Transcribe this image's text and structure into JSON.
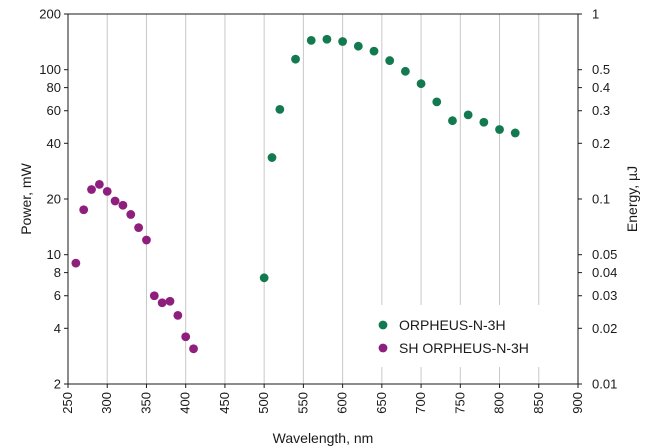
{
  "chart_data": {
    "type": "scatter",
    "xlabel": "Wavelength, nm",
    "ylabel": "Power, mW",
    "y2label": "Energy, µJ",
    "xlim": [
      250,
      900
    ],
    "ylim": [
      2,
      200
    ],
    "y2lim": [
      0.01,
      1
    ],
    "y_scale": "log",
    "y2_scale": "log",
    "grid": "vertical",
    "legend_position": "bottom-right",
    "x_ticks": [
      "250",
      "300",
      "350",
      "400",
      "450",
      "500",
      "550",
      "600",
      "650",
      "700",
      "750",
      "800",
      "850",
      "900"
    ],
    "x_tick_values": [
      250,
      300,
      350,
      400,
      450,
      500,
      550,
      600,
      650,
      700,
      750,
      800,
      850,
      900
    ],
    "y_ticks": [
      "2",
      "4",
      "6",
      "8",
      "10",
      "20",
      "40",
      "60",
      "80",
      "100",
      "200"
    ],
    "y_tick_values": [
      2,
      4,
      6,
      8,
      10,
      20,
      40,
      60,
      80,
      100,
      200
    ],
    "y2_ticks": [
      "0.01",
      "0.02",
      "0.03",
      "0.04",
      "0.05",
      "0.1",
      "0.2",
      "0.3",
      "0.4",
      "0.5",
      "1"
    ],
    "y2_tick_values": [
      0.01,
      0.02,
      0.03,
      0.04,
      0.05,
      0.1,
      0.2,
      0.3,
      0.4,
      0.5,
      1
    ],
    "series": [
      {
        "name": "ORPHEUS-N-3H",
        "color": "#137a4f",
        "points": [
          [
            500,
            7.5
          ],
          [
            510,
            33.5
          ],
          [
            520,
            61
          ],
          [
            540,
            114
          ],
          [
            560,
            144
          ],
          [
            580,
            146
          ],
          [
            600,
            142
          ],
          [
            620,
            134
          ],
          [
            640,
            126
          ],
          [
            660,
            112
          ],
          [
            680,
            98
          ],
          [
            700,
            84
          ],
          [
            720,
            67
          ],
          [
            740,
            53
          ],
          [
            760,
            57
          ],
          [
            780,
            52
          ],
          [
            800,
            47.5
          ],
          [
            820,
            45.5
          ]
        ]
      },
      {
        "name": "SH ORPHEUS-N-3H",
        "color": "#8e1f7c",
        "points": [
          [
            260,
            9
          ],
          [
            270,
            17.5
          ],
          [
            280,
            22.5
          ],
          [
            290,
            24
          ],
          [
            300,
            22
          ],
          [
            310,
            19.5
          ],
          [
            320,
            18.5
          ],
          [
            330,
            16.5
          ],
          [
            340,
            14
          ],
          [
            350,
            12
          ],
          [
            360,
            6
          ],
          [
            370,
            5.5
          ],
          [
            380,
            5.6
          ],
          [
            390,
            4.7
          ],
          [
            400,
            3.6
          ],
          [
            410,
            3.1
          ]
        ]
      }
    ]
  }
}
